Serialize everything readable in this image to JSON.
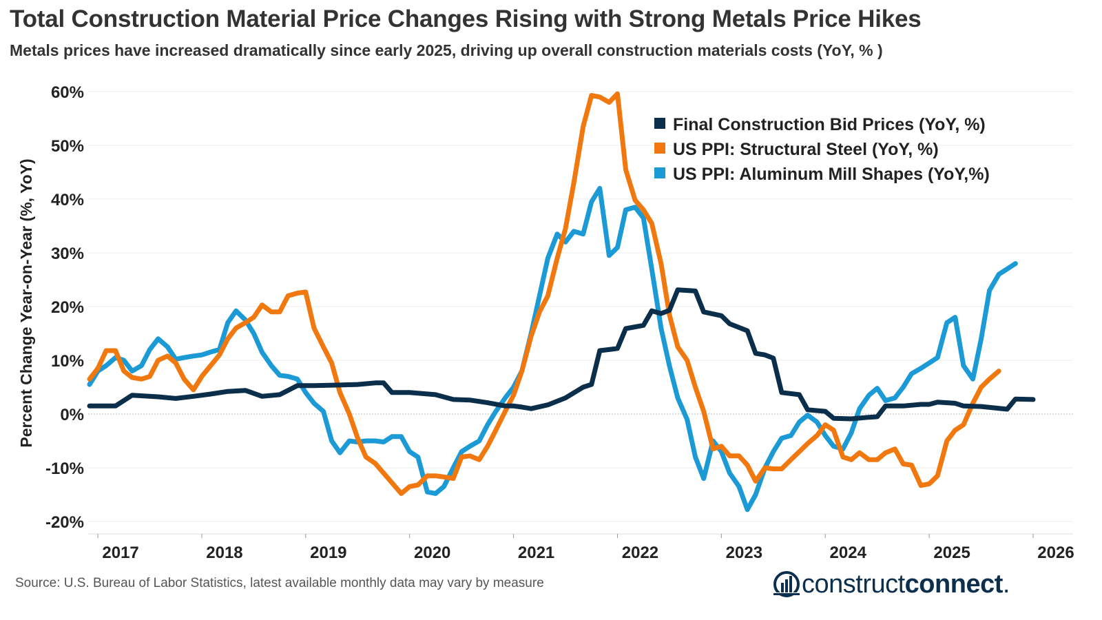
{
  "title": "Total Construction Material Price Changes Rising with Strong Metals Price Hikes",
  "subtitle": "Metals prices have increased dramatically since early 2025, driving up overall construction materials costs (YoY, % )",
  "source": "Source: U.S. Bureau of Labor Statistics, latest available monthly data may vary by measure",
  "logo": {
    "text_light": "construct",
    "text_bold": "connect",
    "mark": "."
  },
  "chart_data": {
    "type": "line",
    "ylabel": "Percent Change Year-on-Year (%, YoY)",
    "xlabel": "",
    "ylim": [
      -22,
      60
    ],
    "yticks": [
      60,
      50,
      40,
      30,
      20,
      10,
      0,
      -10,
      -20
    ],
    "ytick_labels": [
      "60%",
      "50%",
      "40%",
      "30%",
      "20%",
      "10%",
      "0%",
      "-10%",
      "-20%"
    ],
    "xticks": [
      2017,
      2018,
      2019,
      2020,
      2021,
      2022,
      2023,
      2024,
      2025,
      2026
    ],
    "xtick_labels": [
      "2017",
      "2018",
      "2019",
      "2020",
      "2021",
      "2022",
      "2023",
      "2024",
      "2025",
      "2026"
    ],
    "grid": true,
    "legend_position": "top-right",
    "series": [
      {
        "name": "Final Construction Bid Prices (YoY, %)",
        "color": "#0b2e4a",
        "points": [
          [
            2016.92,
            1.5
          ],
          [
            2017.17,
            1.5
          ],
          [
            2017.33,
            3.5
          ],
          [
            2017.58,
            3.2
          ],
          [
            2017.75,
            2.9
          ],
          [
            2017.92,
            3.3
          ],
          [
            2018.08,
            3.7
          ],
          [
            2018.25,
            4.2
          ],
          [
            2018.42,
            4.4
          ],
          [
            2018.58,
            3.3
          ],
          [
            2018.75,
            3.6
          ],
          [
            2018.92,
            5.3
          ],
          [
            2019.08,
            5.3
          ],
          [
            2019.33,
            5.4
          ],
          [
            2019.5,
            5.5
          ],
          [
            2019.67,
            5.8
          ],
          [
            2019.75,
            5.8
          ],
          [
            2019.83,
            4.0
          ],
          [
            2020.0,
            4.0
          ],
          [
            2020.25,
            3.6
          ],
          [
            2020.42,
            2.7
          ],
          [
            2020.58,
            2.6
          ],
          [
            2020.75,
            2.1
          ],
          [
            2020.92,
            1.5
          ],
          [
            2021.0,
            1.5
          ],
          [
            2021.08,
            1.3
          ],
          [
            2021.17,
            1.0
          ],
          [
            2021.33,
            1.7
          ],
          [
            2021.5,
            3.0
          ],
          [
            2021.67,
            5.0
          ],
          [
            2021.75,
            5.5
          ],
          [
            2021.83,
            11.8
          ],
          [
            2021.92,
            12.0
          ],
          [
            2022.0,
            12.2
          ],
          [
            2022.08,
            15.9
          ],
          [
            2022.25,
            16.5
          ],
          [
            2022.33,
            19.2
          ],
          [
            2022.42,
            18.7
          ],
          [
            2022.5,
            19.3
          ],
          [
            2022.58,
            23.1
          ],
          [
            2022.75,
            22.9
          ],
          [
            2022.83,
            19.0
          ],
          [
            2023.0,
            18.3
          ],
          [
            2023.08,
            16.8
          ],
          [
            2023.25,
            15.5
          ],
          [
            2023.33,
            11.3
          ],
          [
            2023.42,
            11.0
          ],
          [
            2023.5,
            10.4
          ],
          [
            2023.58,
            4.0
          ],
          [
            2023.75,
            3.6
          ],
          [
            2023.83,
            0.8
          ],
          [
            2024.0,
            0.5
          ],
          [
            2024.08,
            -0.8
          ],
          [
            2024.25,
            -0.9
          ],
          [
            2024.42,
            -0.6
          ],
          [
            2024.5,
            -0.5
          ],
          [
            2024.58,
            1.5
          ],
          [
            2024.75,
            1.5
          ],
          [
            2024.92,
            1.8
          ],
          [
            2025.0,
            1.8
          ],
          [
            2025.08,
            2.2
          ],
          [
            2025.25,
            2.0
          ],
          [
            2025.33,
            1.5
          ],
          [
            2025.5,
            1.4
          ],
          [
            2025.75,
            0.9
          ],
          [
            2025.83,
            2.8
          ],
          [
            2026.0,
            2.7
          ]
        ]
      },
      {
        "name": "US PPI: Structural Steel (YoY, %)",
        "color": "#f0780f",
        "points": [
          [
            2016.92,
            6.5
          ],
          [
            2017.0,
            8.5
          ],
          [
            2017.08,
            11.8
          ],
          [
            2017.17,
            11.8
          ],
          [
            2017.25,
            8.0
          ],
          [
            2017.33,
            6.8
          ],
          [
            2017.42,
            6.5
          ],
          [
            2017.5,
            7.0
          ],
          [
            2017.58,
            10.0
          ],
          [
            2017.67,
            10.8
          ],
          [
            2017.75,
            9.5
          ],
          [
            2017.83,
            6.5
          ],
          [
            2017.92,
            4.5
          ],
          [
            2018.0,
            7.0
          ],
          [
            2018.17,
            11.0
          ],
          [
            2018.25,
            14.0
          ],
          [
            2018.33,
            16.0
          ],
          [
            2018.42,
            17.0
          ],
          [
            2018.5,
            18.0
          ],
          [
            2018.58,
            20.3
          ],
          [
            2018.67,
            19.0
          ],
          [
            2018.75,
            19.0
          ],
          [
            2018.83,
            22.0
          ],
          [
            2018.92,
            22.5
          ],
          [
            2019.0,
            22.7
          ],
          [
            2019.08,
            16.0
          ],
          [
            2019.17,
            12.5
          ],
          [
            2019.25,
            9.5
          ],
          [
            2019.33,
            4.0
          ],
          [
            2019.42,
            0.0
          ],
          [
            2019.5,
            -4.5
          ],
          [
            2019.58,
            -8.0
          ],
          [
            2019.67,
            -9.2
          ],
          [
            2019.75,
            -11.0
          ],
          [
            2019.83,
            -12.8
          ],
          [
            2019.92,
            -14.8
          ],
          [
            2020.0,
            -13.5
          ],
          [
            2020.08,
            -13.2
          ],
          [
            2020.17,
            -11.5
          ],
          [
            2020.25,
            -11.5
          ],
          [
            2020.33,
            -11.7
          ],
          [
            2020.42,
            -12.0
          ],
          [
            2020.5,
            -8.0
          ],
          [
            2020.58,
            -7.8
          ],
          [
            2020.67,
            -8.5
          ],
          [
            2020.75,
            -6.0
          ],
          [
            2020.83,
            -3.0
          ],
          [
            2020.92,
            0.5
          ],
          [
            2021.0,
            3.5
          ],
          [
            2021.08,
            8.0
          ],
          [
            2021.17,
            14.5
          ],
          [
            2021.25,
            19.0
          ],
          [
            2021.33,
            22.0
          ],
          [
            2021.42,
            29.0
          ],
          [
            2021.5,
            34.5
          ],
          [
            2021.58,
            43.0
          ],
          [
            2021.67,
            53.5
          ],
          [
            2021.75,
            59.3
          ],
          [
            2021.83,
            59.0
          ],
          [
            2021.92,
            58.0
          ],
          [
            2022.0,
            59.6
          ],
          [
            2022.08,
            45.5
          ],
          [
            2022.17,
            39.8
          ],
          [
            2022.25,
            38.0
          ],
          [
            2022.33,
            35.5
          ],
          [
            2022.42,
            28.0
          ],
          [
            2022.5,
            18.5
          ],
          [
            2022.58,
            12.5
          ],
          [
            2022.67,
            10.0
          ],
          [
            2022.75,
            5.0
          ],
          [
            2022.83,
            0.5
          ],
          [
            2022.92,
            -6.5
          ],
          [
            2023.0,
            -6.0
          ],
          [
            2023.08,
            -7.8
          ],
          [
            2023.17,
            -7.8
          ],
          [
            2023.25,
            -9.5
          ],
          [
            2023.33,
            -12.5
          ],
          [
            2023.42,
            -10.0
          ],
          [
            2023.5,
            -10.2
          ],
          [
            2023.58,
            -10.2
          ],
          [
            2023.67,
            -8.5
          ],
          [
            2023.75,
            -7.0
          ],
          [
            2023.83,
            -5.5
          ],
          [
            2023.92,
            -4.0
          ],
          [
            2024.0,
            -2.0
          ],
          [
            2024.08,
            -3.0
          ],
          [
            2024.17,
            -8.0
          ],
          [
            2024.25,
            -8.5
          ],
          [
            2024.33,
            -7.2
          ],
          [
            2024.42,
            -8.5
          ],
          [
            2024.5,
            -8.5
          ],
          [
            2024.58,
            -7.2
          ],
          [
            2024.67,
            -6.5
          ],
          [
            2024.75,
            -9.3
          ],
          [
            2024.83,
            -9.5
          ],
          [
            2024.92,
            -13.3
          ],
          [
            2025.0,
            -13.0
          ],
          [
            2025.08,
            -11.5
          ],
          [
            2025.17,
            -5.0
          ],
          [
            2025.25,
            -3.0
          ],
          [
            2025.33,
            -2.0
          ],
          [
            2025.42,
            2.0
          ],
          [
            2025.5,
            5.0
          ],
          [
            2025.58,
            6.5
          ],
          [
            2025.67,
            8.0
          ]
        ]
      },
      {
        "name": "US PPI: Aluminum Mill Shapes (YoY,%)",
        "color": "#1b9ad6",
        "points": [
          [
            2016.92,
            5.5
          ],
          [
            2017.0,
            8.0
          ],
          [
            2017.08,
            9.0
          ],
          [
            2017.17,
            10.5
          ],
          [
            2017.25,
            10.0
          ],
          [
            2017.33,
            8.0
          ],
          [
            2017.42,
            9.0
          ],
          [
            2017.5,
            12.0
          ],
          [
            2017.58,
            14.0
          ],
          [
            2017.67,
            12.5
          ],
          [
            2017.75,
            10.2
          ],
          [
            2017.83,
            10.5
          ],
          [
            2017.92,
            10.8
          ],
          [
            2018.0,
            11.0
          ],
          [
            2018.08,
            11.5
          ],
          [
            2018.17,
            12.0
          ],
          [
            2018.25,
            17.0
          ],
          [
            2018.33,
            19.2
          ],
          [
            2018.42,
            17.5
          ],
          [
            2018.5,
            15.0
          ],
          [
            2018.58,
            11.5
          ],
          [
            2018.67,
            9.0
          ],
          [
            2018.75,
            7.2
          ],
          [
            2018.83,
            7.0
          ],
          [
            2018.92,
            6.5
          ],
          [
            2019.0,
            4.0
          ],
          [
            2019.08,
            2.0
          ],
          [
            2019.17,
            0.5
          ],
          [
            2019.25,
            -5.0
          ],
          [
            2019.33,
            -7.2
          ],
          [
            2019.42,
            -5.0
          ],
          [
            2019.5,
            -5.2
          ],
          [
            2019.58,
            -5.0
          ],
          [
            2019.67,
            -5.0
          ],
          [
            2019.75,
            -5.2
          ],
          [
            2019.83,
            -4.2
          ],
          [
            2019.92,
            -4.2
          ],
          [
            2020.0,
            -7.0
          ],
          [
            2020.08,
            -8.0
          ],
          [
            2020.17,
            -14.5
          ],
          [
            2020.25,
            -14.8
          ],
          [
            2020.33,
            -13.5
          ],
          [
            2020.42,
            -10.0
          ],
          [
            2020.5,
            -7.0
          ],
          [
            2020.58,
            -6.0
          ],
          [
            2020.67,
            -5.0
          ],
          [
            2020.75,
            -2.0
          ],
          [
            2020.83,
            0.5
          ],
          [
            2020.92,
            3.0
          ],
          [
            2021.0,
            5.0
          ],
          [
            2021.08,
            8.0
          ],
          [
            2021.17,
            15.0
          ],
          [
            2021.25,
            22.0
          ],
          [
            2021.33,
            29.0
          ],
          [
            2021.42,
            33.5
          ],
          [
            2021.5,
            32.0
          ],
          [
            2021.58,
            34.0
          ],
          [
            2021.67,
            33.5
          ],
          [
            2021.75,
            39.5
          ],
          [
            2021.83,
            42.0
          ],
          [
            2021.92,
            29.5
          ],
          [
            2022.0,
            31.0
          ],
          [
            2022.08,
            38.0
          ],
          [
            2022.17,
            38.5
          ],
          [
            2022.25,
            36.5
          ],
          [
            2022.33,
            27.0
          ],
          [
            2022.42,
            16.0
          ],
          [
            2022.5,
            9.0
          ],
          [
            2022.58,
            3.0
          ],
          [
            2022.67,
            -1.0
          ],
          [
            2022.75,
            -8.0
          ],
          [
            2022.83,
            -12.0
          ],
          [
            2022.92,
            -5.0
          ],
          [
            2023.0,
            -7.0
          ],
          [
            2023.08,
            -11.0
          ],
          [
            2023.17,
            -13.5
          ],
          [
            2023.25,
            -17.8
          ],
          [
            2023.33,
            -15.0
          ],
          [
            2023.42,
            -10.0
          ],
          [
            2023.5,
            -7.0
          ],
          [
            2023.58,
            -4.5
          ],
          [
            2023.67,
            -4.0
          ],
          [
            2023.75,
            -1.5
          ],
          [
            2023.83,
            -0.2
          ],
          [
            2023.92,
            -1.5
          ],
          [
            2024.0,
            -4.0
          ],
          [
            2024.08,
            -6.0
          ],
          [
            2024.17,
            -6.5
          ],
          [
            2024.25,
            -3.5
          ],
          [
            2024.33,
            1.0
          ],
          [
            2024.42,
            3.5
          ],
          [
            2024.5,
            4.8
          ],
          [
            2024.58,
            2.5
          ],
          [
            2024.67,
            3.0
          ],
          [
            2024.75,
            5.0
          ],
          [
            2024.83,
            7.5
          ],
          [
            2024.92,
            8.5
          ],
          [
            2025.0,
            9.5
          ],
          [
            2025.08,
            10.5
          ],
          [
            2025.17,
            17.0
          ],
          [
            2025.25,
            18.0
          ],
          [
            2025.33,
            9.0
          ],
          [
            2025.42,
            6.5
          ],
          [
            2025.5,
            14.0
          ],
          [
            2025.58,
            23.0
          ],
          [
            2025.67,
            26.0
          ],
          [
            2025.75,
            27.0
          ],
          [
            2025.83,
            28.0
          ]
        ]
      }
    ]
  }
}
